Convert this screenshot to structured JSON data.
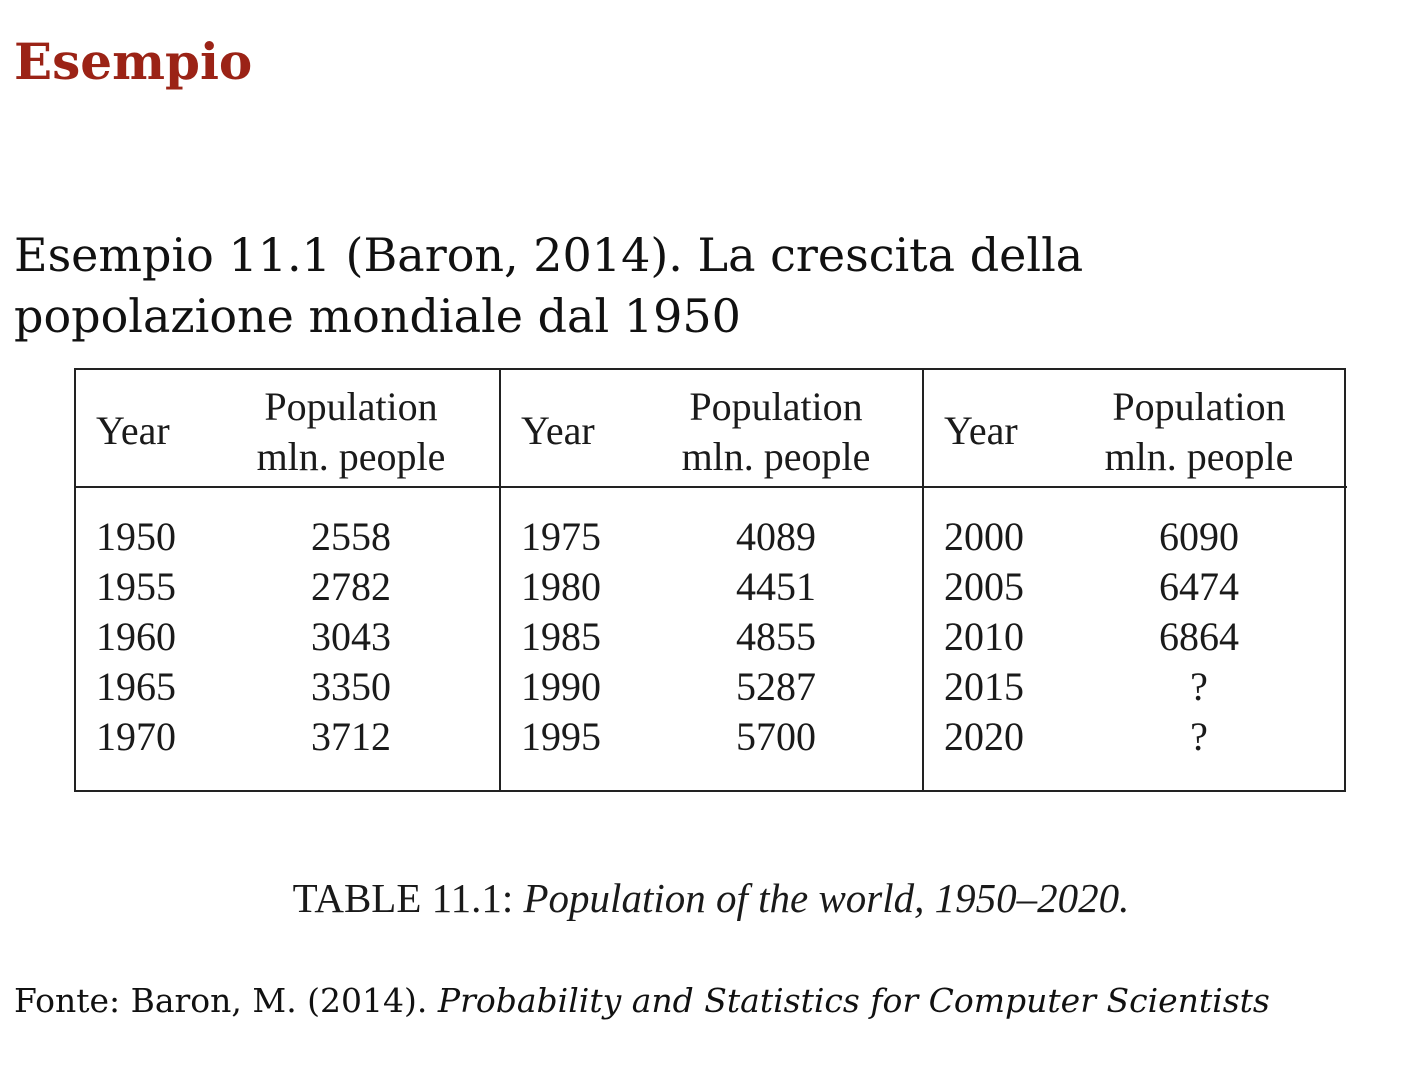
{
  "slide": {
    "title": "Esempio",
    "intro_line1": "Esempio 11.1 (Baron, 2014). La crescita della",
    "intro_line2": "popolazione mondiale dal 1950"
  },
  "table": {
    "header": {
      "year": "Year",
      "population_line1": "Population",
      "population_line2": "mln. people"
    },
    "groups": [
      {
        "rows": [
          {
            "year": "1950",
            "population": "2558"
          },
          {
            "year": "1955",
            "population": "2782"
          },
          {
            "year": "1960",
            "population": "3043"
          },
          {
            "year": "1965",
            "population": "3350"
          },
          {
            "year": "1970",
            "population": "3712"
          }
        ]
      },
      {
        "rows": [
          {
            "year": "1975",
            "population": "4089"
          },
          {
            "year": "1980",
            "population": "4451"
          },
          {
            "year": "1985",
            "population": "4855"
          },
          {
            "year": "1990",
            "population": "5287"
          },
          {
            "year": "1995",
            "population": "5700"
          }
        ]
      },
      {
        "rows": [
          {
            "year": "2000",
            "population": "6090"
          },
          {
            "year": "2005",
            "population": "6474"
          },
          {
            "year": "2010",
            "population": "6864"
          },
          {
            "year": "2015",
            "population": "?"
          },
          {
            "year": "2020",
            "population": "?"
          }
        ]
      }
    ],
    "caption_label": "TABLE 11.1:",
    "caption_text": "Population of the world, 1950–2020."
  },
  "source": {
    "prefix": "Fonte: Baron, M. (2014).",
    "book_title": "Probability and Statistics for Computer Scientists"
  },
  "colors": {
    "title": "#9b2316",
    "text": "#111111",
    "rule": "#222222"
  }
}
